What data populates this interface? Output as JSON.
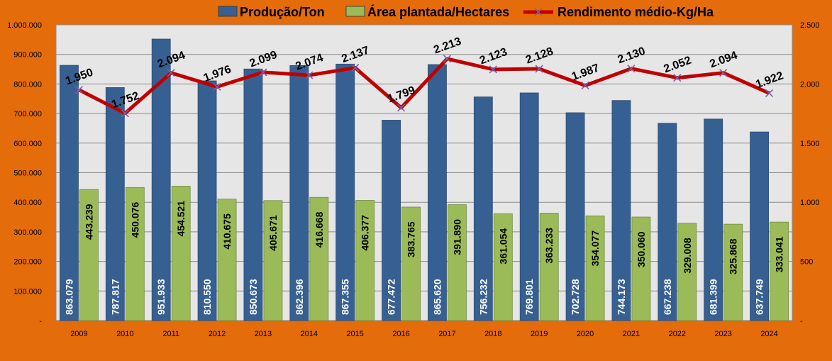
{
  "chart_data": {
    "type": "bar",
    "categories": [
      "2009",
      "2010",
      "2011",
      "2012",
      "2013",
      "2014",
      "2015",
      "2016",
      "2017",
      "2018",
      "2019",
      "2020",
      "2021",
      "2022",
      "2023",
      "2024"
    ],
    "series": [
      {
        "name": "Produção/Ton",
        "type": "bar",
        "axis": "left",
        "color": "#376092",
        "values": [
          863079,
          787817,
          951933,
          810550,
          850673,
          862396,
          867355,
          677472,
          865620,
          756232,
          769801,
          702728,
          744173,
          667238,
          681399,
          637749
        ],
        "labels": [
          "863.079",
          "787.817",
          "951.933",
          "810.550",
          "850.673",
          "862.396",
          "867.355",
          "677.472",
          "865.620",
          "756.232",
          "769.801",
          "702.728",
          "744.173",
          "667.238",
          "681.399",
          "637.749"
        ]
      },
      {
        "name": "Área plantada/Hectares",
        "type": "bar",
        "axis": "left",
        "color": "#9BBB59",
        "values": [
          443239,
          450076,
          454521,
          410675,
          405671,
          416668,
          406377,
          383765,
          391890,
          361054,
          363233,
          354077,
          350060,
          329008,
          325868,
          333041
        ],
        "labels": [
          "443.239",
          "450.076",
          "454.521",
          "410.675",
          "405.671",
          "416.668",
          "406.377",
          "383.765",
          "391.890",
          "361.054",
          "363.233",
          "354.077",
          "350.060",
          "329.008",
          "325.868",
          "333.041"
        ]
      },
      {
        "name": "Rendimento médio-Kg/Ha",
        "type": "line",
        "axis": "right",
        "color": "#C00000",
        "marker_color": "#7F5FA0",
        "values": [
          1950,
          1752,
          2094,
          1976,
          2099,
          2074,
          2137,
          1799,
          2213,
          2123,
          2128,
          1987,
          2130,
          2052,
          2094,
          1922
        ],
        "labels": [
          "1.950",
          "1.752",
          "2.094",
          "1.976",
          "2.099",
          "2.074",
          "2.137",
          "1.799",
          "2.213",
          "2.123",
          "2.128",
          "1.987",
          "2.130",
          "2.052",
          "2.094",
          "1.922"
        ]
      }
    ],
    "y_left": {
      "min": 0,
      "max": 1000000,
      "ticks": [
        0,
        100000,
        200000,
        300000,
        400000,
        500000,
        600000,
        700000,
        800000,
        900000,
        1000000
      ],
      "tick_labels": [
        "-",
        "100.000",
        "200.000",
        "300.000",
        "400.000",
        "500.000",
        "600.000",
        "700.000",
        "800.000",
        "900.000",
        "1.000.000"
      ]
    },
    "y_right": {
      "min": 0,
      "max": 2500,
      "ticks": [
        0,
        500,
        1000,
        1500,
        2000,
        2500
      ],
      "tick_labels": [
        "-",
        "500",
        "1.000",
        "1.500",
        "2.000",
        "2.500"
      ]
    },
    "grid": true,
    "legend_position": "top",
    "colors": {
      "background": "#E46C0A",
      "plot_area": "#E6E6E6",
      "gridline": "#8C8C8C"
    }
  }
}
